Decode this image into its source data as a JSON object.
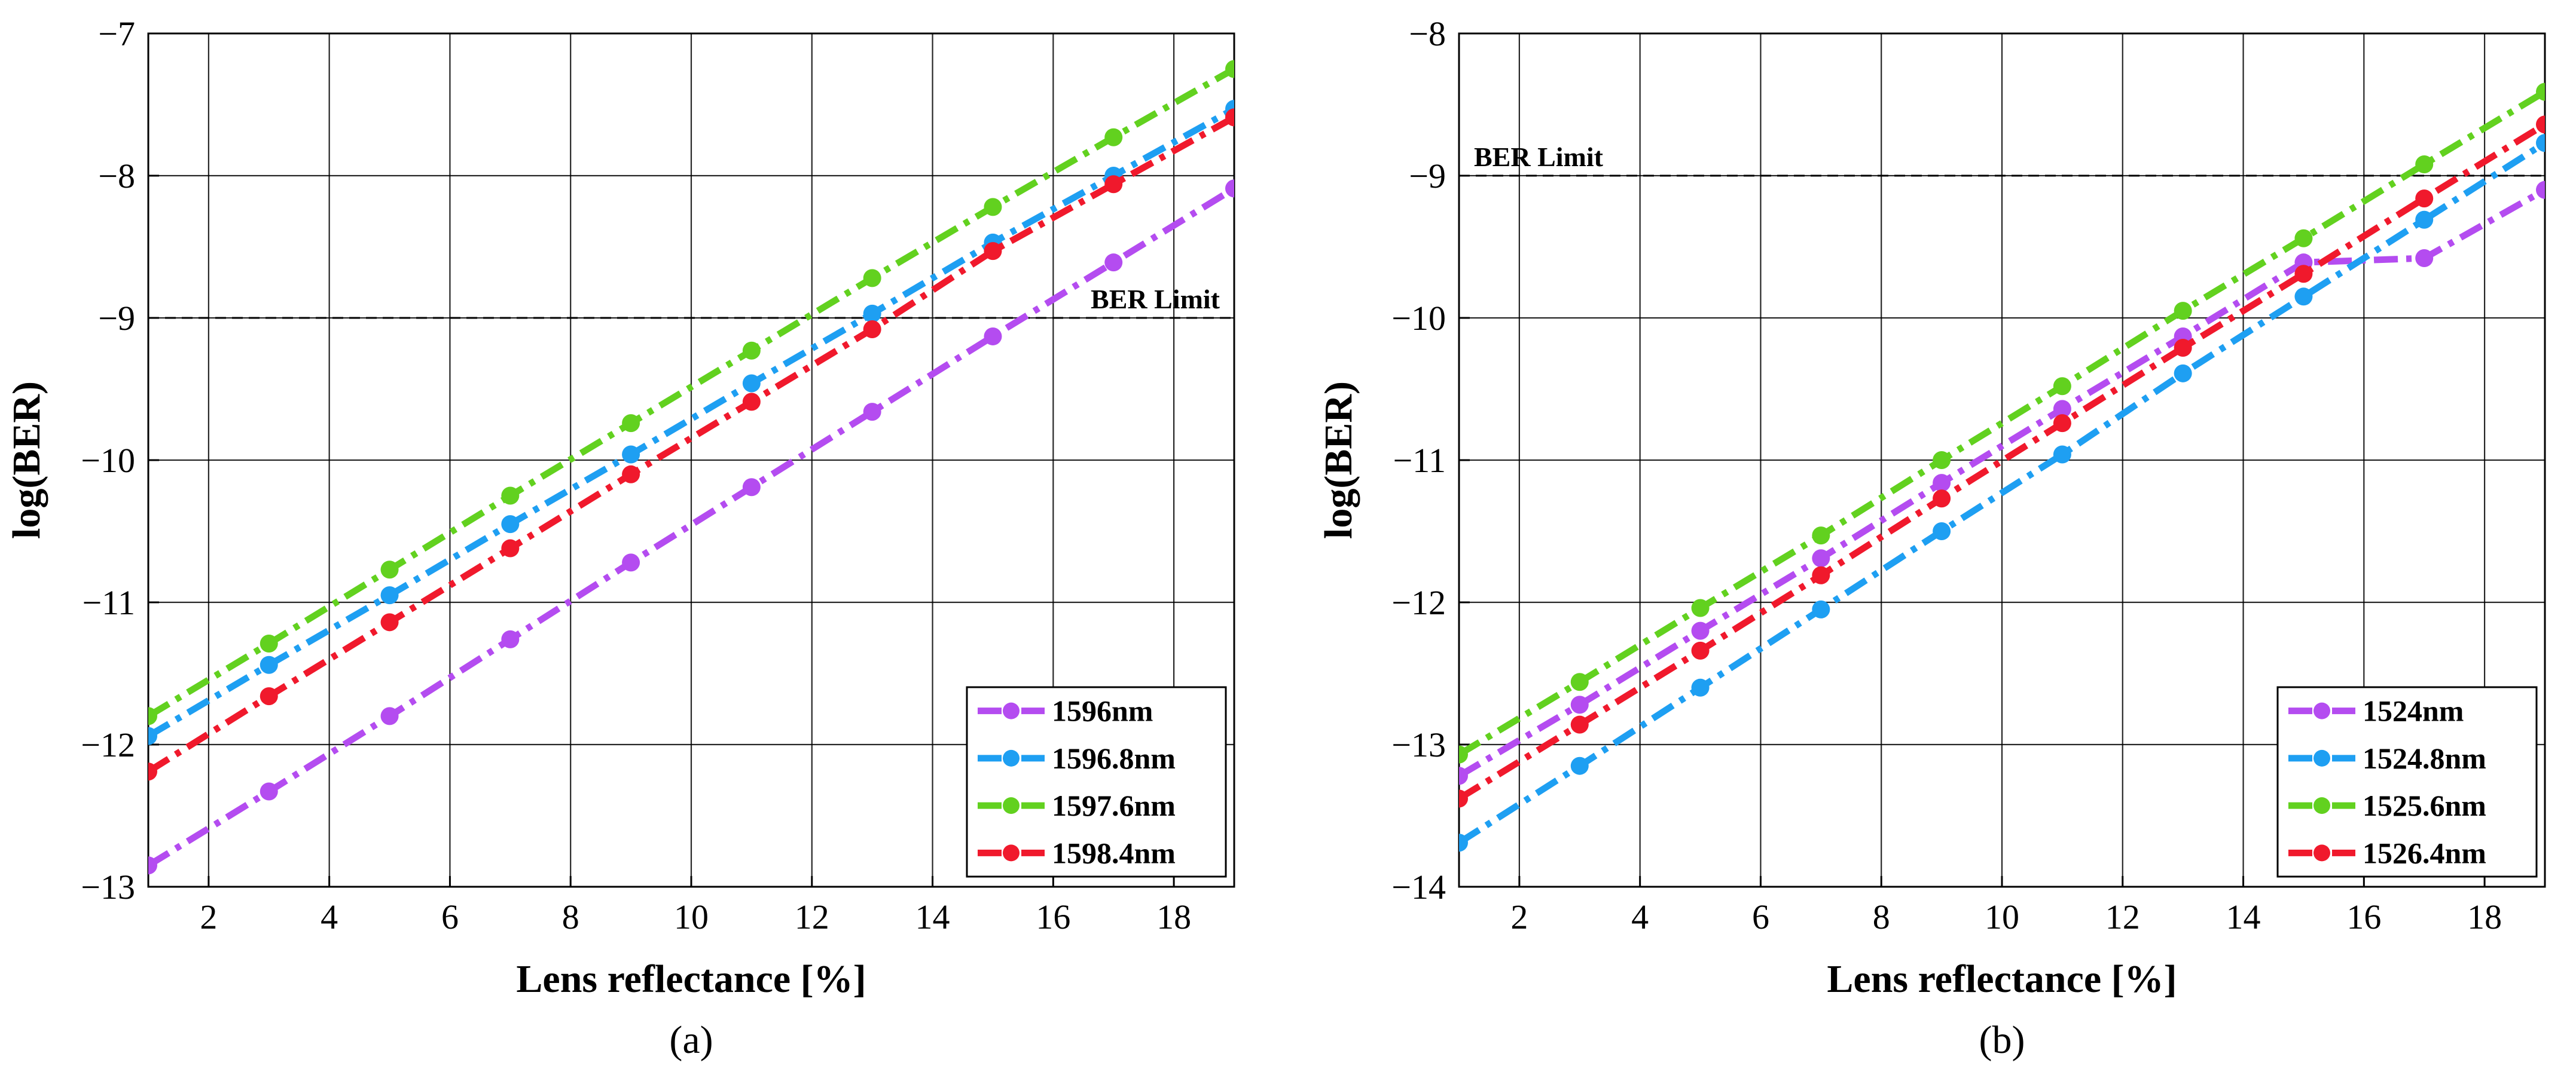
{
  "chart_data": [
    {
      "type": "line",
      "panel_label": "(a)",
      "xlabel": "Lens reflectance [%]",
      "ylabel": "log(BER)",
      "xlim": [
        1,
        19
      ],
      "ylim": [
        -13,
        -7
      ],
      "xticks": [
        2,
        4,
        6,
        8,
        10,
        12,
        14,
        16,
        18
      ],
      "yticks": [
        -13,
        -12,
        -11,
        -10,
        -9,
        -8,
        -7
      ],
      "xtick_labels": [
        "2",
        "4",
        "6",
        "8",
        "10",
        "12",
        "14",
        "16",
        "18"
      ],
      "ytick_labels": [
        "−13",
        "−12",
        "−11",
        "−10",
        "−9",
        "−8",
        "−7"
      ],
      "grid": true,
      "legend_position": "bottom-right",
      "ber_limit": {
        "value": -9,
        "label": "BER Limit",
        "label_position": "right"
      },
      "x": [
        1,
        3,
        5,
        7,
        9,
        11,
        13,
        15,
        17,
        19
      ],
      "series": [
        {
          "name": "1596nm",
          "color": "#b44cf0",
          "values": [
            -12.85,
            -12.33,
            -11.8,
            -11.26,
            -10.72,
            -10.19,
            -9.66,
            -9.13,
            -8.61,
            -8.09
          ]
        },
        {
          "name": "1596.8nm",
          "color": "#1e9ff2",
          "values": [
            -11.94,
            -11.44,
            -10.95,
            -10.45,
            -9.96,
            -9.46,
            -8.97,
            -8.47,
            -8.0,
            -7.53
          ]
        },
        {
          "name": "1597.6nm",
          "color": "#62d11f",
          "values": [
            -11.8,
            -11.29,
            -10.77,
            -10.25,
            -9.74,
            -9.23,
            -8.72,
            -8.22,
            -7.73,
            -7.25
          ]
        },
        {
          "name": "1598.4nm",
          "color": "#f0192c",
          "values": [
            -12.19,
            -11.66,
            -11.14,
            -10.62,
            -10.1,
            -9.59,
            -9.08,
            -8.53,
            -8.06,
            -7.59
          ]
        }
      ]
    },
    {
      "type": "line",
      "panel_label": "(b)",
      "xlabel": "Lens reflectance [%]",
      "ylabel": "log(BER)",
      "xlim": [
        1,
        19
      ],
      "ylim": [
        -14,
        -8
      ],
      "xticks": [
        2,
        4,
        6,
        8,
        10,
        12,
        14,
        16,
        18
      ],
      "yticks": [
        -14,
        -13,
        -12,
        -11,
        -10,
        -9,
        -8
      ],
      "xtick_labels": [
        "2",
        "4",
        "6",
        "8",
        "10",
        "12",
        "14",
        "16",
        "18"
      ],
      "ytick_labels": [
        "−14",
        "−13",
        "−12",
        "−11",
        "−10",
        "−9",
        "−8"
      ],
      "grid": true,
      "legend_position": "bottom-right",
      "ber_limit": {
        "value": -9,
        "label": "BER Limit",
        "label_position": "left"
      },
      "x": [
        1,
        3,
        5,
        7,
        9,
        11,
        13,
        15,
        17,
        19
      ],
      "series": [
        {
          "name": "1524nm",
          "color": "#b44cf0",
          "values": [
            -13.22,
            -12.72,
            -12.2,
            -11.69,
            -11.16,
            -10.64,
            -10.13,
            -9.61,
            -9.58,
            -9.1
          ]
        },
        {
          "name": "1524.8nm",
          "color": "#1e9ff2",
          "values": [
            -13.69,
            -13.15,
            -12.6,
            -12.05,
            -11.5,
            -10.96,
            -10.39,
            -9.85,
            -9.31,
            -8.77
          ]
        },
        {
          "name": "1525.6nm",
          "color": "#62d11f",
          "values": [
            -13.07,
            -12.56,
            -12.04,
            -11.53,
            -11.0,
            -10.48,
            -9.95,
            -9.44,
            -8.92,
            -8.41
          ]
        },
        {
          "name": "1526.4nm",
          "color": "#f0192c",
          "values": [
            -13.38,
            -12.86,
            -12.34,
            -11.81,
            -11.27,
            -10.74,
            -10.21,
            -9.69,
            -9.16,
            -8.64
          ]
        }
      ]
    }
  ]
}
